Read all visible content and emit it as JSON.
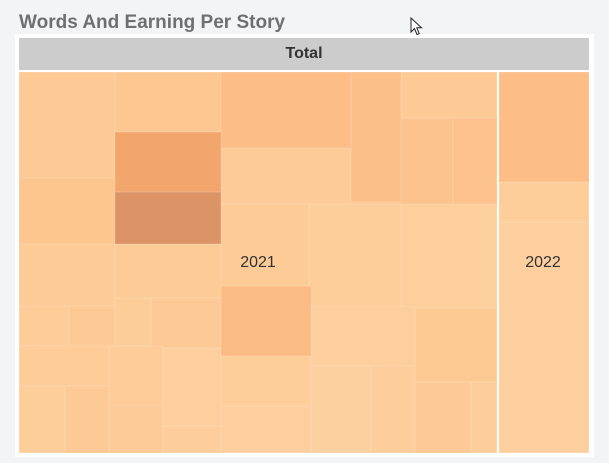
{
  "title": "Words And Earning Per Story",
  "header": "Total",
  "chart_data": {
    "type": "treemap",
    "title": "Words And Earning Per Story",
    "hierarchy": "Total",
    "groups": [
      {
        "label": "2021",
        "share": 0.84
      },
      {
        "label": "2022",
        "share": 0.16
      }
    ],
    "color_scale": {
      "low": "#fdd3a4",
      "high": "#dc9366"
    }
  }
}
